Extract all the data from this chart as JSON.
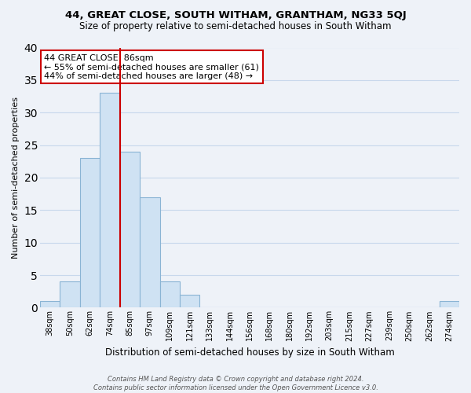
{
  "title": "44, GREAT CLOSE, SOUTH WITHAM, GRANTHAM, NG33 5QJ",
  "subtitle": "Size of property relative to semi-detached houses in South Witham",
  "xlabel": "Distribution of semi-detached houses by size in South Witham",
  "ylabel": "Number of semi-detached properties",
  "bin_labels": [
    "38sqm",
    "50sqm",
    "62sqm",
    "74sqm",
    "85sqm",
    "97sqm",
    "109sqm",
    "121sqm",
    "133sqm",
    "144sqm",
    "156sqm",
    "168sqm",
    "180sqm",
    "192sqm",
    "203sqm",
    "215sqm",
    "227sqm",
    "239sqm",
    "250sqm",
    "262sqm",
    "274sqm"
  ],
  "bar_values": [
    1,
    4,
    23,
    33,
    24,
    17,
    4,
    2,
    0,
    0,
    0,
    0,
    0,
    0,
    0,
    0,
    0,
    0,
    0,
    0,
    1
  ],
  "bar_color": "#cfe2f3",
  "bar_edge_color": "#8ab4d4",
  "vline_color": "#cc0000",
  "vline_bin_index": 4,
  "annotation_line1": "44 GREAT CLOSE: 86sqm",
  "annotation_line2": "← 55% of semi-detached houses are smaller (61)",
  "annotation_line3": "44% of semi-detached houses are larger (48) →",
  "ylim": [
    0,
    40
  ],
  "yticks": [
    0,
    5,
    10,
    15,
    20,
    25,
    30,
    35,
    40
  ],
  "grid_color": "#c8d8ec",
  "bg_color": "#eef2f8",
  "footer_line1": "Contains HM Land Registry data © Crown copyright and database right 2024.",
  "footer_line2": "Contains public sector information licensed under the Open Government Licence v3.0."
}
